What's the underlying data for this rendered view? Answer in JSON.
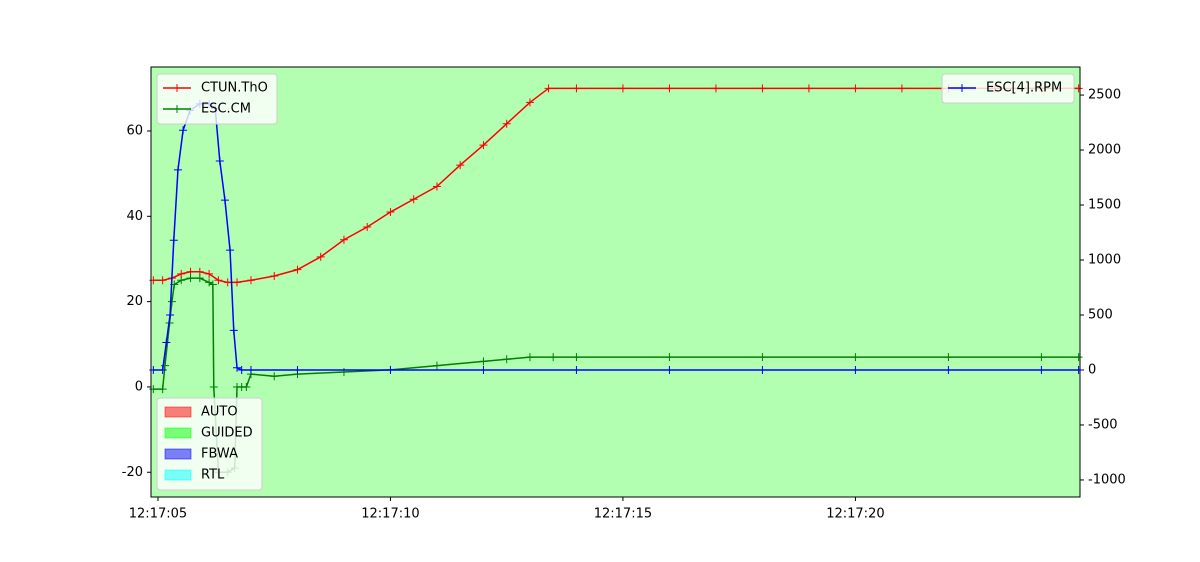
{
  "chart_data": {
    "type": "line",
    "xlim": [
      4.85,
      24.83
    ],
    "xticks": [
      {
        "value": 5,
        "label": "12:17:05"
      },
      {
        "value": 10,
        "label": "12:17:10"
      },
      {
        "value": 15,
        "label": "12:17:15"
      },
      {
        "value": 20,
        "label": "12:17:20"
      }
    ],
    "ylim": [
      -25.8,
      75
    ],
    "yticks": [
      -20,
      0,
      20,
      40,
      60
    ],
    "y2lim": [
      -1155,
      2755
    ],
    "y2ticks": [
      -1000,
      -500,
      0,
      500,
      1000,
      1500,
      2000,
      2500
    ],
    "legend": "upper left",
    "y2_legend": "upper right",
    "mode_legend": "lower left",
    "series": [
      {
        "name": "CTUN.ThO",
        "color": "red",
        "x": [
          4.9,
          5.1,
          5.3,
          5.5,
          5.7,
          5.9,
          6.1,
          6.3,
          6.5,
          6.7,
          7.0,
          7.5,
          8.0,
          8.5,
          9.0,
          9.5,
          10.0,
          10.5,
          11.0,
          11.5,
          12.0,
          12.5,
          13.0,
          13.4,
          14,
          15,
          16,
          17,
          18,
          19,
          20,
          21,
          22,
          23,
          24,
          24.8
        ],
        "values": [
          25,
          25,
          25.5,
          26.5,
          27,
          27,
          26.5,
          25,
          24.5,
          24.5,
          25,
          26,
          27.5,
          30.5,
          34.5,
          37.5,
          41,
          44,
          47,
          52,
          56.7,
          61.7,
          66.7,
          70,
          70,
          70,
          70,
          70,
          70,
          70,
          70,
          70,
          70,
          70,
          70,
          70
        ]
      },
      {
        "name": "ESC.CM",
        "color": "green",
        "x": [
          4.9,
          5.1,
          5.15,
          5.25,
          5.3,
          5.35,
          5.5,
          5.7,
          5.9,
          6.1,
          6.18,
          6.2,
          6.3,
          6.5,
          6.65,
          6.7,
          6.8,
          6.9,
          7.0,
          7.5,
          8,
          9,
          10,
          11,
          12,
          12.5,
          13,
          13.5,
          14,
          16,
          18,
          20,
          22,
          24,
          24.8
        ],
        "values": [
          -0.5,
          -0.5,
          5,
          15,
          20,
          24,
          25,
          25.5,
          25.5,
          24.5,
          24,
          0,
          -20,
          -20,
          -19,
          0,
          0,
          0,
          3,
          2.5,
          3,
          3.5,
          4,
          5,
          6,
          6.5,
          7,
          7,
          7,
          7,
          7,
          7,
          7,
          7,
          7
        ]
      },
      {
        "name": "ESC[4].RPM",
        "color": "blue",
        "axis": "y2",
        "x": [
          4.9,
          5.1,
          5.18,
          5.26,
          5.34,
          5.43,
          5.54,
          5.69,
          5.9,
          6.1,
          6.23,
          6.33,
          6.44,
          6.55,
          6.63,
          6.7,
          6.8,
          7.0,
          8,
          10,
          12,
          14,
          16,
          18,
          20,
          22,
          24,
          24.8
        ],
        "values": [
          0,
          0,
          250,
          500,
          1180,
          1820,
          2180,
          2360,
          2420,
          2420,
          2380,
          1900,
          1545,
          1090,
          360,
          20,
          0,
          0,
          0,
          0,
          0,
          0,
          0,
          0,
          0,
          0,
          0,
          0
        ]
      }
    ],
    "modes": [
      {
        "name": "AUTO",
        "color": "red"
      },
      {
        "name": "GUIDED",
        "color": "lime"
      },
      {
        "name": "FBWA",
        "color": "blue"
      },
      {
        "name": "RTL",
        "color": "cyan"
      }
    ],
    "mode_regions": [
      {
        "mode": 1,
        "x": [
          4.85,
          24.83
        ]
      }
    ]
  }
}
